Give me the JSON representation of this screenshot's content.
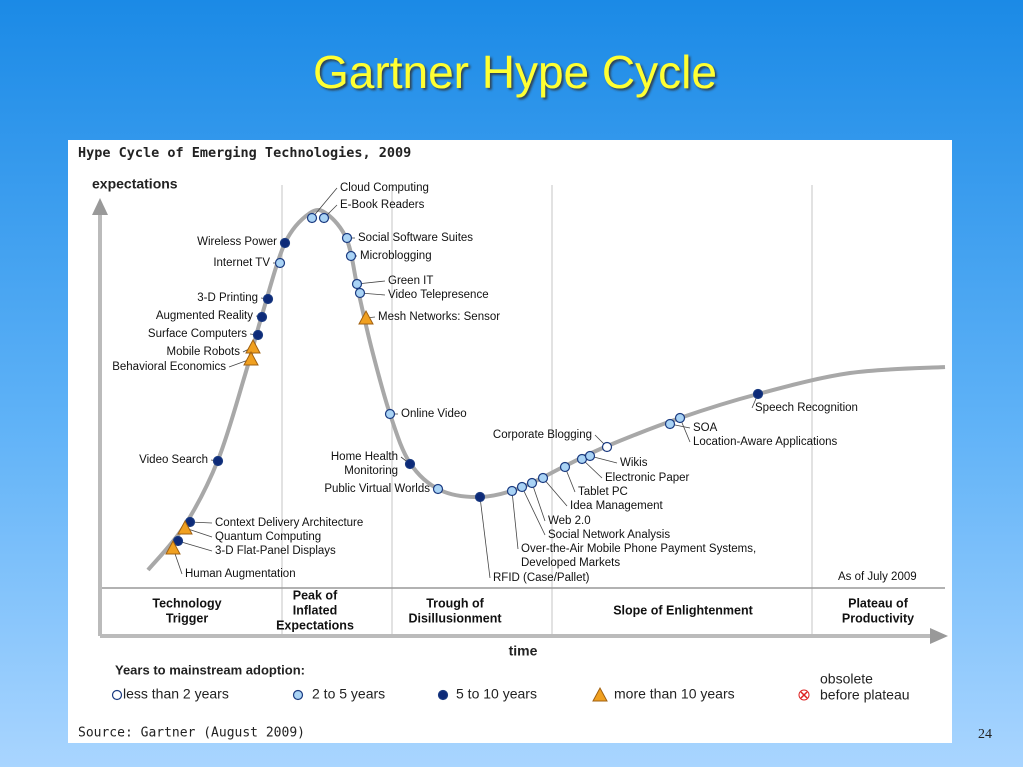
{
  "slide": {
    "title": "Gartner Hype Cycle",
    "page_number": "24"
  },
  "diagram": {
    "title": "Hype Cycle of Emerging Technologies, 2009",
    "y_axis_label": "expectations",
    "x_axis_label": "time",
    "as_of": "As of July 2009",
    "phases": [
      {
        "lines": [
          "Technology",
          "Trigger"
        ]
      },
      {
        "lines": [
          "Peak of",
          "Inflated",
          "Expectations"
        ]
      },
      {
        "lines": [
          "Trough of",
          "Disillusionment"
        ]
      },
      {
        "lines": [
          "Slope of Enlightenment"
        ]
      },
      {
        "lines": [
          "Plateau of",
          "Productivity"
        ]
      }
    ],
    "technologies": [
      {
        "lines": [
          "Cloud Computing"
        ]
      },
      {
        "lines": [
          "E-Book Readers"
        ]
      },
      {
        "lines": [
          "Social Software Suites"
        ]
      },
      {
        "lines": [
          "Microblogging"
        ]
      },
      {
        "lines": [
          "Green IT"
        ]
      },
      {
        "lines": [
          "Video Telepresence"
        ]
      },
      {
        "lines": [
          "Mesh Networks: Sensor"
        ]
      },
      {
        "lines": [
          "Online Video"
        ]
      },
      {
        "lines": [
          "Home Health",
          "Monitoring"
        ]
      },
      {
        "lines": [
          "Public Virtual Worlds"
        ]
      },
      {
        "lines": [
          "RFID (Case/Pallet)"
        ]
      },
      {
        "lines": [
          "Over-the-Air Mobile Phone Payment Systems,",
          "Developed Markets"
        ]
      },
      {
        "lines": [
          "Social Network Analysis"
        ]
      },
      {
        "lines": [
          "Web 2.0"
        ]
      },
      {
        "lines": [
          "Idea Management"
        ]
      },
      {
        "lines": [
          "Tablet PC"
        ]
      },
      {
        "lines": [
          "Electronic Paper"
        ]
      },
      {
        "lines": [
          "Wikis"
        ]
      },
      {
        "lines": [
          "Corporate Blogging"
        ]
      },
      {
        "lines": [
          "SOA"
        ]
      },
      {
        "lines": [
          "Location-Aware Applications"
        ]
      },
      {
        "lines": [
          "Speech Recognition"
        ]
      },
      {
        "lines": [
          "Wireless Power"
        ]
      },
      {
        "lines": [
          "Internet TV"
        ]
      },
      {
        "lines": [
          "3-D Printing"
        ]
      },
      {
        "lines": [
          "Augmented Reality"
        ]
      },
      {
        "lines": [
          "Surface Computers"
        ]
      },
      {
        "lines": [
          "Mobile Robots"
        ]
      },
      {
        "lines": [
          "Behavioral Economics"
        ]
      },
      {
        "lines": [
          "Video Search"
        ]
      },
      {
        "lines": [
          "Context Delivery Architecture"
        ]
      },
      {
        "lines": [
          "Quantum Computing"
        ]
      },
      {
        "lines": [
          "3-D Flat-Panel Displays"
        ]
      },
      {
        "lines": [
          "Human Augmentation"
        ]
      }
    ],
    "legend": {
      "heading": "Years to mainstream adoption:",
      "items": [
        {
          "lines": [
            "less than 2 years"
          ]
        },
        {
          "lines": [
            "2 to 5 years"
          ]
        },
        {
          "lines": [
            "5 to 10 years"
          ]
        },
        {
          "lines": [
            "more than 10 years"
          ]
        },
        {
          "lines": [
            "obsolete",
            "before plateau"
          ]
        }
      ]
    },
    "source": "Source: Gartner (August 2009)"
  }
}
